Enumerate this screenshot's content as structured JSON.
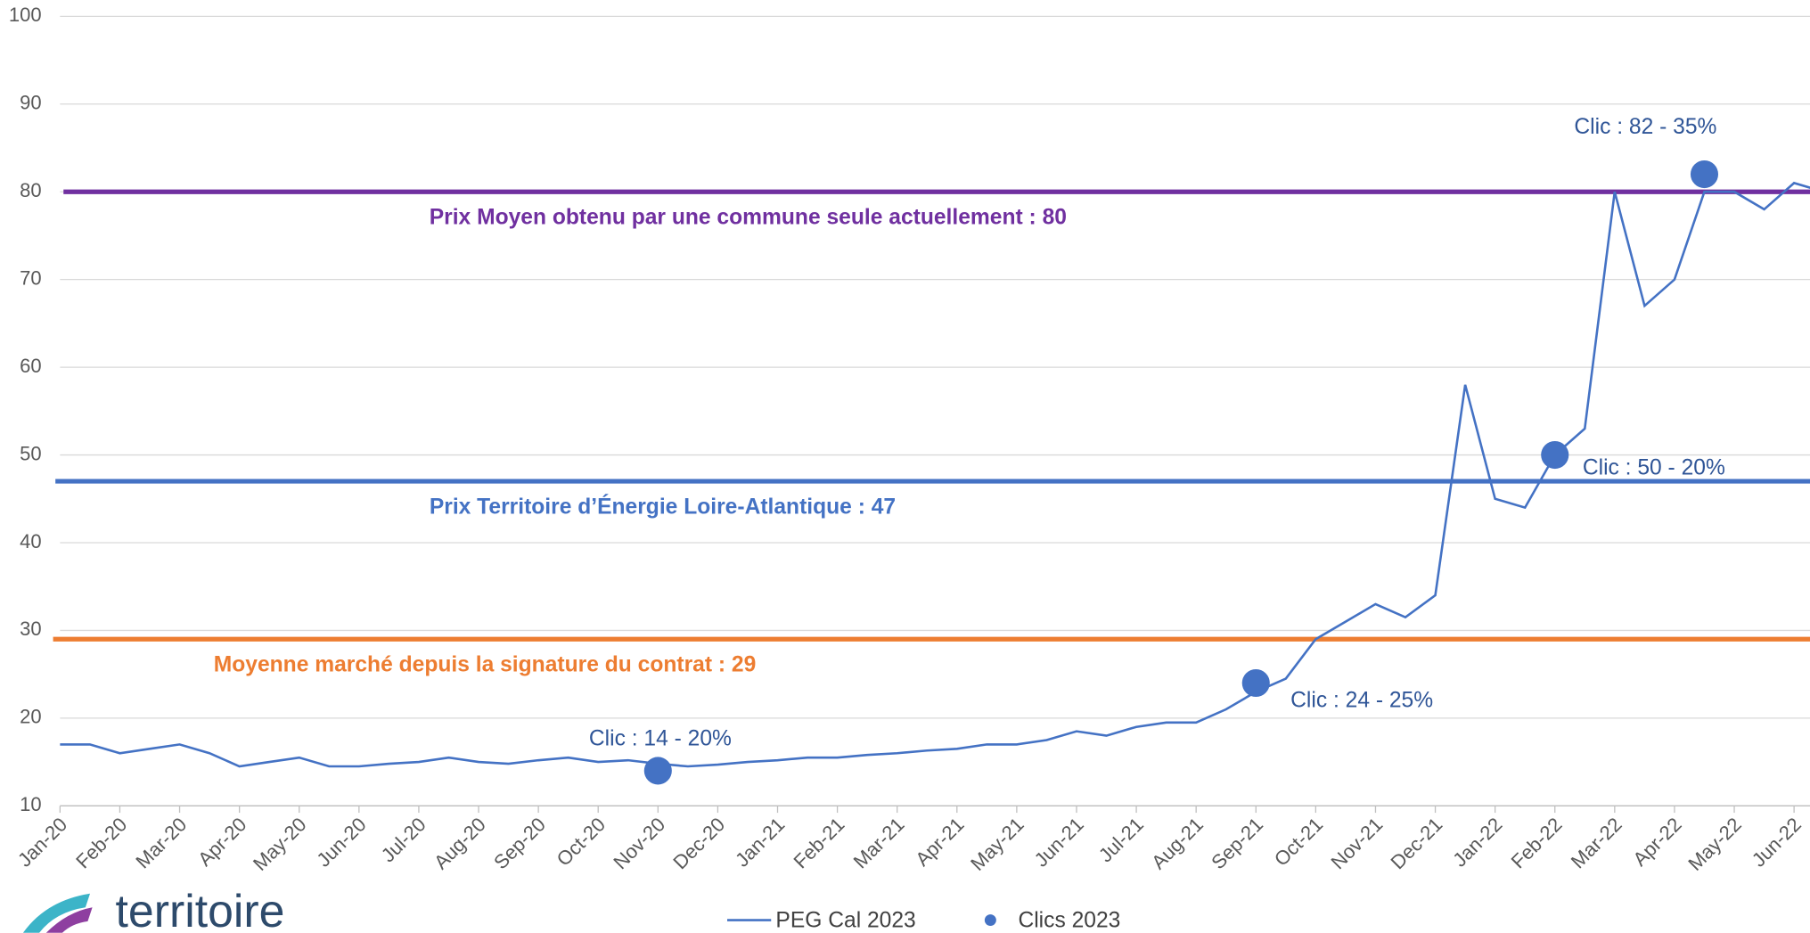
{
  "chart_data": {
    "type": "line",
    "categories": [
      "Jan-20",
      null,
      "Feb-20",
      null,
      "Mar-20",
      null,
      "Apr-20",
      null,
      "May-20",
      null,
      "Jun-20",
      null,
      "Jul-20",
      null,
      "Aug-20",
      null,
      "Sep-20",
      null,
      "Oct-20",
      null,
      "Nov-20",
      null,
      "Dec-20",
      null,
      "Jan-21",
      null,
      "Feb-21",
      null,
      "Mar-21",
      null,
      "Apr-21",
      null,
      "May-21",
      null,
      "Jun-21",
      null,
      "Jul-21",
      null,
      "Aug-21",
      null,
      "Sep-21",
      null,
      "Oct-21",
      null,
      "Nov-21",
      null,
      "Dec-21",
      null,
      "Jan-22",
      null,
      "Feb-22",
      null,
      "Mar-22",
      null,
      "Apr-22",
      null,
      "May-22",
      null,
      "Jun-22",
      null
    ],
    "series": [
      {
        "name": "PEG Cal 2023",
        "color": "#4472c4",
        "values": [
          17,
          17,
          16,
          16.5,
          17,
          16,
          14.5,
          15,
          15.5,
          14.5,
          14.5,
          14.8,
          15,
          15.5,
          15,
          14.8,
          15.2,
          15.5,
          15,
          15.2,
          14.8,
          14.5,
          14.7,
          15,
          15.2,
          15.5,
          15.5,
          15.8,
          16,
          16.3,
          16.5,
          17,
          17,
          17.5,
          18.5,
          18,
          19,
          19.5,
          19.5,
          21,
          23,
          24.5,
          29,
          31,
          33,
          31.5,
          34,
          58,
          45,
          44,
          50,
          53,
          80,
          67,
          70,
          80,
          80,
          78,
          81,
          80
        ]
      },
      {
        "name": "Clics 2023",
        "color": "#4472c4",
        "marker": "dot",
        "values": [
          null,
          null,
          null,
          null,
          null,
          null,
          null,
          null,
          null,
          null,
          null,
          null,
          null,
          null,
          null,
          null,
          null,
          null,
          null,
          null,
          14,
          null,
          null,
          null,
          null,
          null,
          null,
          null,
          null,
          null,
          null,
          null,
          null,
          null,
          null,
          null,
          null,
          null,
          null,
          null,
          24,
          null,
          null,
          null,
          null,
          null,
          null,
          null,
          null,
          null,
          50,
          null,
          null,
          null,
          null,
          82,
          null,
          null,
          null,
          null
        ],
        "value_labels": [
          null,
          null,
          null,
          null,
          null,
          null,
          null,
          null,
          null,
          null,
          null,
          null,
          null,
          null,
          null,
          null,
          null,
          null,
          null,
          null,
          "Clic : 14 - 20%",
          null,
          null,
          null,
          null,
          null,
          null,
          null,
          null,
          null,
          null,
          null,
          null,
          null,
          null,
          null,
          null,
          null,
          null,
          null,
          "Clic : 24 - 25%",
          null,
          null,
          null,
          null,
          null,
          null,
          null,
          null,
          null,
          "Clic : 50 - 20%",
          null,
          null,
          null,
          null,
          "Clic : 82 - 35%",
          null,
          null,
          null,
          null
        ]
      }
    ],
    "reference_lines": [
      {
        "label": "Prix Moyen obtenu par une commune seule actuellement : 80",
        "value": 80,
        "color": "#7030a0"
      },
      {
        "label": "Prix Territoire d’Énergie Loire-Atlantique : 47",
        "value": 47,
        "color": "#4472c4"
      },
      {
        "label": "Moyenne marché depuis la signature du contrat : 29",
        "value": 29,
        "color": "#ed7d31"
      }
    ],
    "ylim": [
      10,
      100
    ],
    "yticks": [
      10,
      20,
      30,
      40,
      50,
      60,
      70,
      80,
      90,
      100
    ],
    "grid": true,
    "legend": "bottom"
  },
  "logo": "territoire"
}
